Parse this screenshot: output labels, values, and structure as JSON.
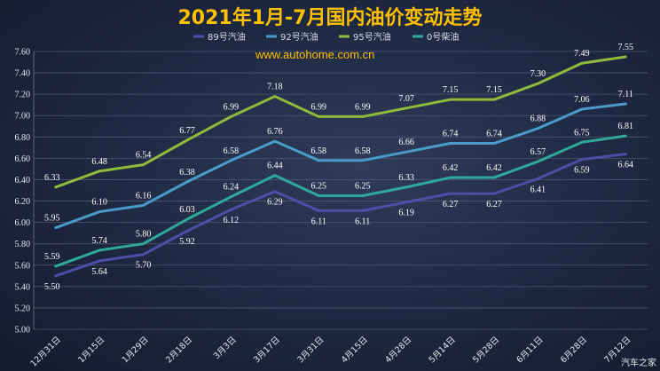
{
  "chart_data": {
    "type": "line",
    "title": "2021年1月-7月国内油价变动走势",
    "watermark": "www.autohome.com.cn",
    "brand": "汽车之家",
    "categories": [
      "12月31日",
      "1月15日",
      "1月29日",
      "2月18日",
      "3月3日",
      "3月17日",
      "3月31日",
      "4月15日",
      "4月28日",
      "5月14日",
      "5月28日",
      "6月11日",
      "6月28日",
      "7月12日"
    ],
    "ylim": [
      5.0,
      7.6
    ],
    "yticks": [
      "5.00",
      "5.20",
      "5.40",
      "5.60",
      "5.80",
      "6.00",
      "6.20",
      "6.40",
      "6.60",
      "6.80",
      "7.00",
      "7.20",
      "7.40",
      "7.60"
    ],
    "grid": true,
    "legend_position": "top",
    "series": [
      {
        "name": "89号汽油",
        "color": "#4a4fa8",
        "values": [
          5.5,
          5.64,
          5.7,
          5.92,
          6.12,
          6.29,
          6.11,
          6.11,
          6.19,
          6.27,
          6.27,
          6.41,
          6.59,
          6.64
        ],
        "labels": [
          "5.50",
          "5.64",
          "5.70",
          "5.92",
          "6.12",
          "6.29",
          "6.11",
          "6.11",
          "6.19",
          "6.27",
          "6.27",
          "6.41",
          "6.59",
          "6.64"
        ]
      },
      {
        "name": "92号汽油",
        "color": "#4a9cc8",
        "values": [
          5.95,
          6.1,
          6.16,
          6.38,
          6.58,
          6.76,
          6.58,
          6.58,
          6.66,
          6.74,
          6.74,
          6.88,
          7.06,
          7.11
        ],
        "labels": [
          "5.95",
          "6.10",
          "6.16",
          "6.38",
          "6.58",
          "6.76",
          "6.58",
          "6.58",
          "6.66",
          "6.74",
          "6.74",
          "6.88",
          "7.06",
          "7.11"
        ]
      },
      {
        "name": "95号汽油",
        "color": "#8fbc3a",
        "values": [
          6.33,
          6.48,
          6.54,
          6.77,
          6.99,
          7.18,
          6.99,
          6.99,
          7.07,
          7.15,
          7.15,
          7.3,
          7.49,
          7.55
        ],
        "labels": [
          "6.33",
          "6.48",
          "6.54",
          "6.77",
          "6.99",
          "7.18",
          "6.99",
          "6.99",
          "7.07",
          "7.15",
          "7.15",
          "7.30",
          "7.49",
          "7.55"
        ]
      },
      {
        "name": "0号柴油",
        "color": "#2fa99a",
        "values": [
          5.59,
          5.74,
          5.8,
          6.03,
          6.24,
          6.44,
          6.25,
          6.25,
          6.33,
          6.42,
          6.42,
          6.57,
          6.75,
          6.81
        ],
        "labels": [
          "5.59",
          "5.74",
          "5.80",
          "6.03",
          "6.24",
          "6.44",
          "6.25",
          "6.25",
          "6.33",
          "6.42",
          "6.42",
          "6.57",
          "6.75",
          "6.81"
        ]
      }
    ]
  }
}
